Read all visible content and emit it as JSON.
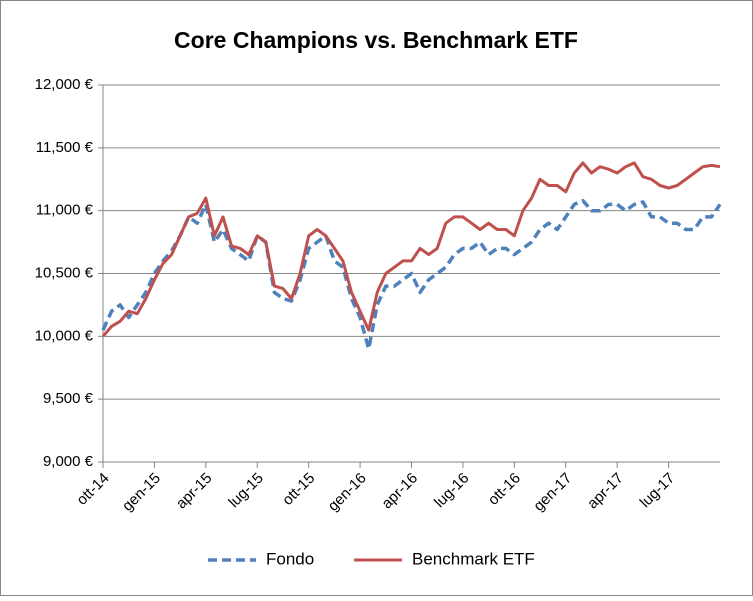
{
  "chart_data": {
    "type": "line",
    "title": "Core Champions vs. Benchmark ETF",
    "categories": [
      "ott-14",
      null,
      null,
      null,
      null,
      null,
      "gen-15",
      null,
      null,
      null,
      null,
      null,
      "apr-15",
      null,
      null,
      null,
      null,
      null,
      "lug-15",
      null,
      null,
      null,
      null,
      null,
      "ott-15",
      null,
      null,
      null,
      null,
      null,
      "gen-16",
      null,
      null,
      null,
      null,
      null,
      "apr-16",
      null,
      null,
      null,
      null,
      null,
      "lug-16",
      null,
      null,
      null,
      null,
      null,
      "ott-16",
      null,
      null,
      null,
      null,
      null,
      "gen-17",
      null,
      null,
      null,
      null,
      null,
      "apr-17",
      null,
      null,
      null,
      null,
      null,
      "lug-17",
      null,
      null,
      null,
      null,
      null,
      null
    ],
    "series": [
      {
        "name": "Fondo",
        "color": "#4f81bd",
        "dashed": true,
        "values": [
          10050,
          10200,
          10250,
          10150,
          10250,
          10350,
          10500,
          10600,
          10680,
          10800,
          10950,
          10900,
          11050,
          10750,
          10850,
          10700,
          10650,
          10600,
          10800,
          10750,
          10350,
          10300,
          10280,
          10450,
          10700,
          10750,
          10800,
          10600,
          10550,
          10300,
          10150,
          9900,
          10250,
          10400,
          10400,
          10450,
          10500,
          10350,
          10450,
          10500,
          10550,
          10650,
          10700,
          10700,
          10750,
          10650,
          10700,
          10700,
          10650,
          10700,
          10750,
          10850,
          10900,
          10850,
          10950,
          11050,
          11080,
          11000,
          11000,
          11050,
          11050,
          11000,
          11050,
          11070,
          10950,
          10950,
          10900,
          10900,
          10850,
          10850,
          10950,
          10950,
          11050
        ]
      },
      {
        "name": "Benchmark ETF",
        "color": "#c0504d",
        "dashed": false,
        "values": [
          10000,
          10080,
          10120,
          10200,
          10180,
          10300,
          10450,
          10580,
          10650,
          10800,
          10950,
          10980,
          11100,
          10800,
          10950,
          10720,
          10700,
          10650,
          10800,
          10750,
          10400,
          10380,
          10300,
          10500,
          10800,
          10850,
          10800,
          10700,
          10600,
          10350,
          10200,
          10050,
          10350,
          10500,
          10550,
          10600,
          10600,
          10700,
          10650,
          10700,
          10900,
          10950,
          10950,
          10900,
          10850,
          10900,
          10850,
          10850,
          10800,
          11000,
          11100,
          11250,
          11200,
          11200,
          11150,
          11300,
          11380,
          11300,
          11350,
          11330,
          11300,
          11350,
          11380,
          11270,
          11250,
          11200,
          11180,
          11200,
          11250,
          11300,
          11350,
          11360,
          11350
        ]
      }
    ],
    "ylim": [
      9000,
      12000
    ],
    "yticks": [
      {
        "value": 9000,
        "label": "9,000 €"
      },
      {
        "value": 9500,
        "label": "9,500 €"
      },
      {
        "value": 10000,
        "label": "10,000 €"
      },
      {
        "value": 10500,
        "label": "10,500 €"
      },
      {
        "value": 11000,
        "label": "11,000 €"
      },
      {
        "value": 11500,
        "label": "11,500 €"
      },
      {
        "value": 12000,
        "label": "12,000 €"
      }
    ],
    "grid": true,
    "legend": "bottom"
  }
}
